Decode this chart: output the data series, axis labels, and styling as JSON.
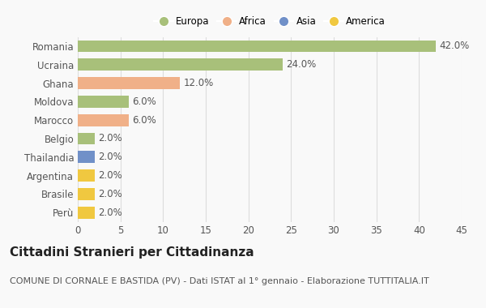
{
  "categories": [
    "Romania",
    "Ucraina",
    "Ghana",
    "Moldova",
    "Marocco",
    "Belgio",
    "Thailandia",
    "Argentina",
    "Brasile",
    "Perù"
  ],
  "values": [
    42.0,
    24.0,
    12.0,
    6.0,
    6.0,
    2.0,
    2.0,
    2.0,
    2.0,
    2.0
  ],
  "colors": [
    "#a8c07a",
    "#a8c07a",
    "#f0b088",
    "#a8c07a",
    "#f0b088",
    "#a8c07a",
    "#7090c8",
    "#f0c840",
    "#f0c840",
    "#f0c840"
  ],
  "legend_labels": [
    "Europa",
    "Africa",
    "Asia",
    "America"
  ],
  "legend_colors": [
    "#a8c07a",
    "#f0b088",
    "#7090c8",
    "#f0c840"
  ],
  "title": "Cittadini Stranieri per Cittadinanza",
  "subtitle": "COMUNE DI CORNALE E BASTIDA (PV) - Dati ISTAT al 1° gennaio - Elaborazione TUTTITALIA.IT",
  "xlim": [
    0,
    45
  ],
  "xticks": [
    0,
    5,
    10,
    15,
    20,
    25,
    30,
    35,
    40,
    45
  ],
  "background_color": "#f9f9f9",
  "grid_color": "#dddddd",
  "bar_height": 0.65,
  "title_fontsize": 11,
  "subtitle_fontsize": 8,
  "label_fontsize": 8.5,
  "tick_fontsize": 8.5
}
